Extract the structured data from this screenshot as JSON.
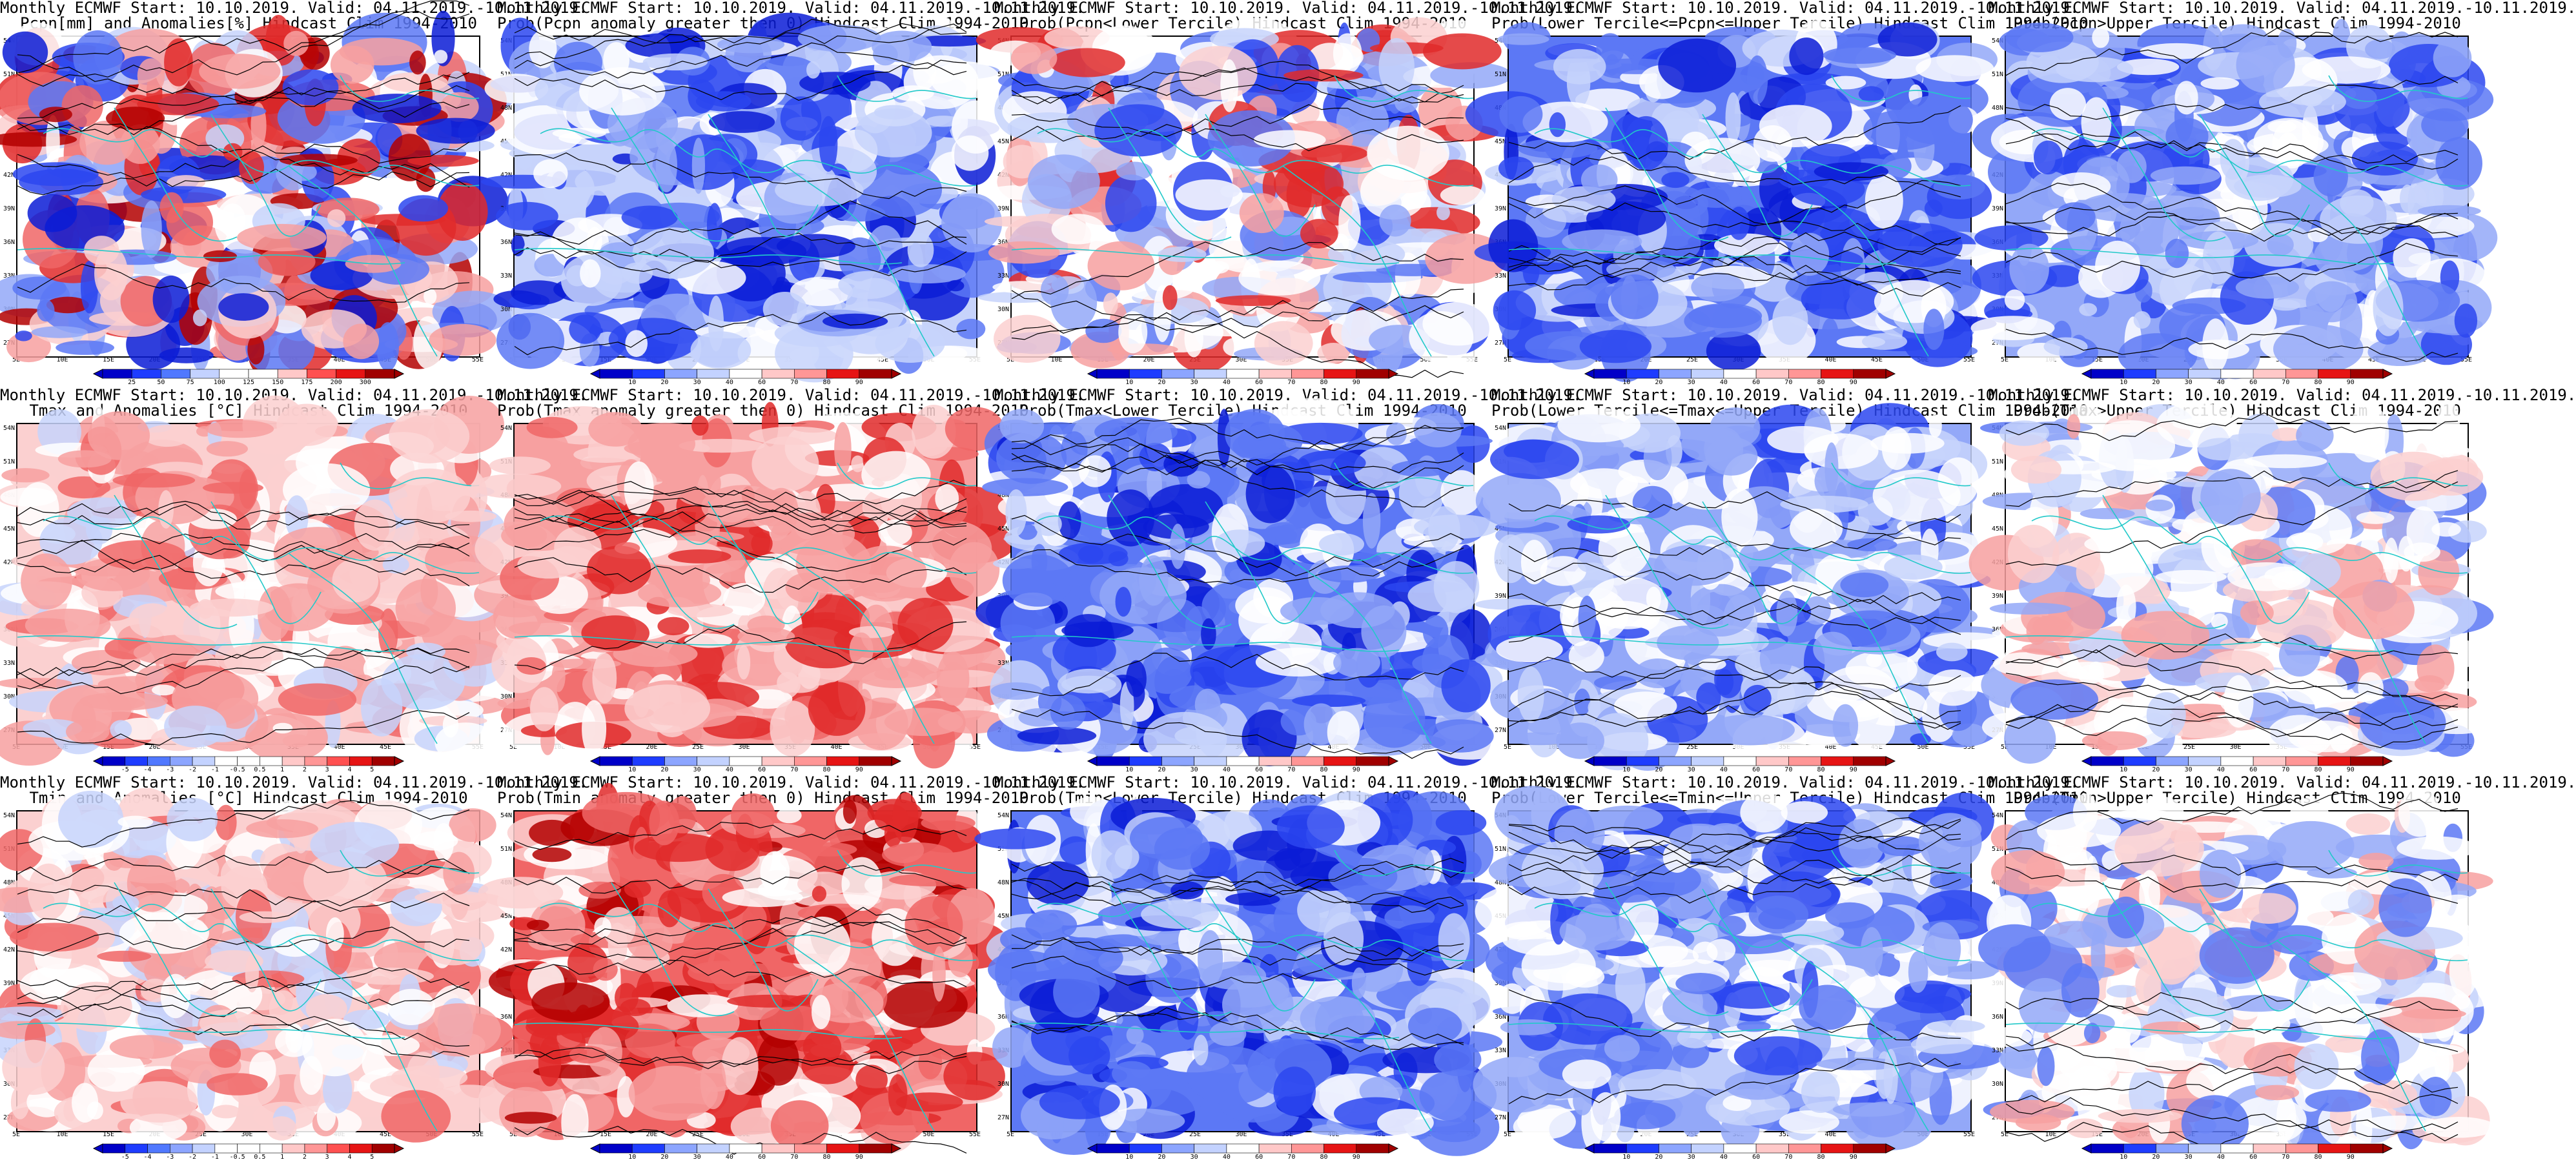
{
  "colors": {
    "dblue": "#0a1cd6",
    "blue": "#2b46f0",
    "mblue": "#5c78f5",
    "lblue": "#93a8f8",
    "pblue": "#c7d3fb",
    "white": "#ffffff",
    "pred": "#fbd0d0",
    "lred": "#f7a0a0",
    "mred": "#f06666",
    "red": "#e02a2a",
    "dred": "#b30000",
    "coast": "#22c9c9",
    "contour": "#000000"
  },
  "lat_labels": [
    "54N",
    "51N",
    "48N",
    "45N",
    "42N",
    "39N",
    "36N",
    "33N",
    "30N",
    "27N"
  ],
  "lon_labels": [
    "5E",
    "10E",
    "15E",
    "20E",
    "25E",
    "30E",
    "35E",
    "40E",
    "45E",
    "50E",
    "55E"
  ],
  "panels": [
    {
      "id": "pcpn-anom",
      "title1": "Monthly ECMWF Start: 10.10.2019. Valid: 04.11.2019.-10.11.2019.",
      "title2": "Pcpn[mm] and Anomalies[%] Hindcast Clim 1994-2010",
      "scheme": "pcpn",
      "ticks": [
        "25",
        "50",
        "75",
        "100",
        "125",
        "150",
        "175",
        "200",
        "300"
      ]
    },
    {
      "id": "pcpn-gt0",
      "title1": "Monthly ECMWF Start: 10.10.2019. Valid: 04.11.2019.-10.11.2019.",
      "title2": "Prob(Pcpn anomaly greater then 0) Hindcast Clim 1994-2010",
      "scheme": "blue-low",
      "ticks": [
        "10",
        "20",
        "30",
        "40",
        "60",
        "70",
        "80",
        "90"
      ]
    },
    {
      "id": "pcpn-lt",
      "title1": "Monthly ECMWF Start: 10.10.2019. Valid: 04.11.2019.-10.11.2019.",
      "title2": "Prob(Pcpn<Lower Tercile) Hindcast Clim 1994-2010",
      "scheme": "red-low",
      "ticks": [
        "10",
        "20",
        "30",
        "40",
        "60",
        "70",
        "80",
        "90"
      ]
    },
    {
      "id": "pcpn-mid",
      "title1": "Monthly ECMWF Start: 10.10.2019. Valid: 04.11.2019.-10.11.2019.",
      "title2": "Prob(Lower Tercile<=Pcpn<=Upper Tercile) Hindcast Clim 1994-2010",
      "scheme": "blue-strong",
      "ticks": [
        "10",
        "20",
        "30",
        "40",
        "60",
        "70",
        "80",
        "90"
      ]
    },
    {
      "id": "pcpn-ut",
      "title1": "Monthly ECMWF Start: 10.10.2019. Valid: 04.11.2019.-10.11.2019.",
      "title2": "Prob(Pcpn>Upper Tercile) Hindcast Clim 1994-2010",
      "scheme": "blue-mid",
      "ticks": [
        "10",
        "20",
        "30",
        "40",
        "60",
        "70",
        "80",
        "90"
      ]
    },
    {
      "id": "tmax-anom",
      "title1": "Monthly ECMWF Start: 10.10.2019. Valid: 04.11.2019.-10.11.2019.",
      "title2": "Tmax and Anomalies [°C] Hindcast Clim 1994-2010",
      "scheme": "red-light",
      "ticks": [
        "-5",
        "-4",
        "-3",
        "-2",
        "-1",
        "-0.5",
        "0.5",
        "1",
        "2",
        "3",
        "4",
        "5"
      ]
    },
    {
      "id": "tmax-gt0",
      "title1": "Monthly ECMWF Start: 10.10.2019. Valid: 04.11.2019.-10.11.2019.",
      "title2": "Prob(Tmax anomaly greater then 0) Hindcast Clim 1994-2010",
      "scheme": "red-mid",
      "ticks": [
        "10",
        "20",
        "30",
        "40",
        "60",
        "70",
        "80",
        "90"
      ]
    },
    {
      "id": "tmax-lt",
      "title1": "Monthly ECMWF Start: 10.10.2019. Valid: 04.11.2019.-10.11.2019.",
      "title2": "Prob(Tmax<Lower Tercile) Hindcast Clim 1994-2010",
      "scheme": "blue-strong",
      "ticks": [
        "10",
        "20",
        "30",
        "40",
        "60",
        "70",
        "80",
        "90"
      ]
    },
    {
      "id": "tmax-mid",
      "title1": "Monthly ECMWF Start: 10.10.2019. Valid: 04.11.2019.-10.11.2019.",
      "title2": "Prob(Lower Tercile<=Tmax<=Upper Tercile) Hindcast Clim 1994-2010",
      "scheme": "blue-mid",
      "ticks": [
        "10",
        "20",
        "30",
        "40",
        "60",
        "70",
        "80",
        "90"
      ]
    },
    {
      "id": "tmax-ut",
      "title1": "Monthly ECMWF Start: 10.10.2019. Valid: 04.11.2019.-10.11.2019.",
      "title2": "Prob(Tmax>Upper Tercile) Hindcast Clim 1994-2010",
      "scheme": "mixed-light",
      "ticks": [
        "10",
        "20",
        "30",
        "40",
        "60",
        "70",
        "80",
        "90"
      ]
    },
    {
      "id": "tmin-anom",
      "title1": "Monthly ECMWF Start: 10.10.2019. Valid: 04.11.2019.-10.11.2019.",
      "title2": "Tmin and Anomalies [°C] Hindcast Clim 1994-2010",
      "scheme": "red-light",
      "ticks": [
        "-5",
        "-4",
        "-3",
        "-2",
        "-1",
        "-0.5",
        "0.5",
        "1",
        "2",
        "3",
        "4",
        "5"
      ]
    },
    {
      "id": "tmin-gt0",
      "title1": "Monthly ECMWF Start: 10.10.2019. Valid: 04.11.2019.-10.11.2019.",
      "title2": "Prob(Tmin anomaly greater then 0) Hindcast Clim 1994-2010",
      "scheme": "red-strong",
      "ticks": [
        "10",
        "20",
        "30",
        "40",
        "60",
        "70",
        "80",
        "90"
      ]
    },
    {
      "id": "tmin-lt",
      "title1": "Monthly ECMWF Start: 10.10.2019. Valid: 04.11.2019.-10.11.2019.",
      "title2": "Prob(Tmin<Lower Tercile) Hindcast Clim 1994-2010",
      "scheme": "blue-strong",
      "ticks": [
        "10",
        "20",
        "30",
        "40",
        "60",
        "70",
        "80",
        "90"
      ]
    },
    {
      "id": "tmin-mid",
      "title1": "Monthly ECMWF Start: 10.10.2019. Valid: 04.11.2019.-10.11.2019.",
      "title2": "Prob(Lower Tercile<=Tmin<=Upper Tercile) Hindcast Clim 1994-2010",
      "scheme": "blue-mid",
      "ticks": [
        "10",
        "20",
        "30",
        "40",
        "60",
        "70",
        "80",
        "90"
      ]
    },
    {
      "id": "tmin-ut",
      "title1": "Monthly ECMWF Start: 10.10.2019. Valid: 04.11.2019.-10.11.2019.",
      "title2": "Prob(Tmin>Upper Tercile) Hindcast Clim 1994-2010",
      "scheme": "mixed-light",
      "ticks": [
        "10",
        "20",
        "30",
        "40",
        "60",
        "70",
        "80",
        "90"
      ]
    }
  ]
}
